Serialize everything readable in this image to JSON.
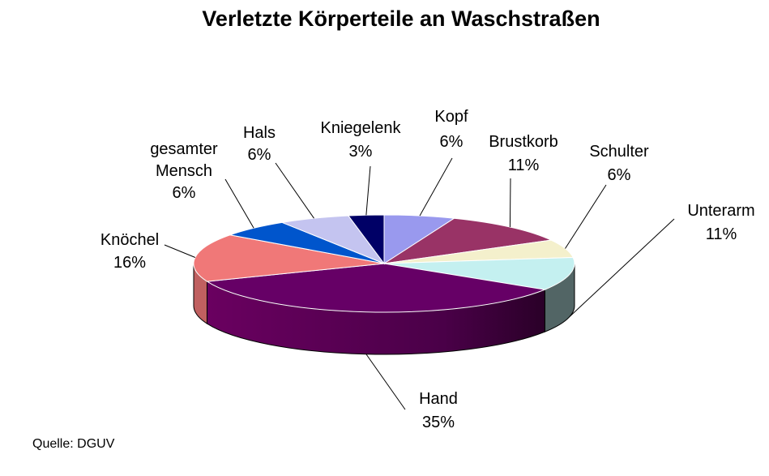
{
  "chart_data": {
    "type": "pie",
    "title": "Verletzte Körperteile an Waschstraßen",
    "slices": [
      {
        "label": "Kopf",
        "value": 6,
        "display": "6%",
        "color": "#9999ee"
      },
      {
        "label": "Brustkorb",
        "value": 11,
        "display": "11%",
        "color": "#993366"
      },
      {
        "label": "Schulter",
        "value": 6,
        "display": "6%",
        "color": "#f4f0cc"
      },
      {
        "label": "Unterarm",
        "value": 11,
        "display": "11%",
        "color": "#c4f0f0"
      },
      {
        "label": "Hand",
        "value": 35,
        "display": "35%",
        "color": "#660066"
      },
      {
        "label": "Knöchel",
        "value": 16,
        "display": "16%",
        "color": "#f07878"
      },
      {
        "label": "gesamter Mensch",
        "value": 6,
        "display": "6%",
        "color": "#0055cc"
      },
      {
        "label": "Hals",
        "value": 6,
        "display": "6%",
        "color": "#c4c4f0"
      },
      {
        "label": "Kniegelenk",
        "value": 3,
        "display": "3%",
        "color": "#000066"
      }
    ],
    "source": "Quelle: DGUV"
  }
}
